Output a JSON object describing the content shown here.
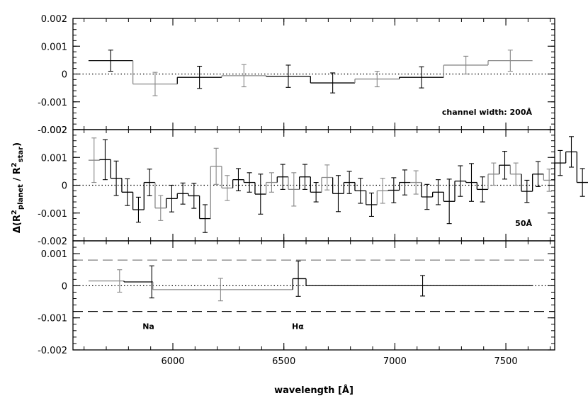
{
  "chart_data": {
    "type": "line",
    "xlabel": "wavelength [Å]",
    "ylabel": "Δ(R²planet / R²star)",
    "ylabel_parts": {
      "prefix": "Δ(R",
      "sup1": "2",
      "sub1": "planet",
      "mid": " / R",
      "sup2": "2",
      "sub2": "star",
      "suffix": ")"
    },
    "xlim": [
      5550,
      7720
    ],
    "xticks": [
      6000,
      6500,
      7000,
      7500
    ],
    "x_tick_labels": [
      "6000",
      "6500",
      "7000",
      "7500"
    ],
    "panels": [
      {
        "annotation": "channel width:  200Å",
        "ylim": [
          -0.002,
          0.002
        ],
        "yticks": [
          -0.002,
          -0.001,
          0,
          0.001,
          0.002
        ],
        "y_tick_labels": [
          "-0.002",
          "-0.001",
          "0",
          "0.001",
          "0.002"
        ],
        "series": [
          {
            "style": "black-step",
            "bins": [
              [
                5620,
                5820,
                0.00048,
                0.00038
              ]
            ]
          },
          {
            "style": "gray-step",
            "bins": [
              [
                5820,
                6020,
                -0.00036,
                0.00042
              ]
            ]
          },
          {
            "style": "black-step",
            "bins": [
              [
                6020,
                6220,
                -0.00012,
                0.0004
              ]
            ]
          },
          {
            "style": "gray-step",
            "bins": [
              [
                6220,
                6420,
                -6e-05,
                0.0004
              ]
            ]
          },
          {
            "style": "black-step",
            "bins": [
              [
                6420,
                6620,
                -8e-05,
                0.0004
              ]
            ]
          },
          {
            "style": "black-step",
            "bins": [
              [
                6620,
                6820,
                -0.00032,
                0.00036
              ]
            ]
          },
          {
            "style": "gray-step",
            "bins": [
              [
                6820,
                7020,
                -0.00018,
                0.00028
              ]
            ]
          },
          {
            "style": "black-step",
            "bins": [
              [
                7020,
                7220,
                -0.00012,
                0.00038
              ]
            ]
          },
          {
            "style": "gray-step",
            "bins": [
              [
                7220,
                7420,
                0.00032,
                0.00032
              ]
            ]
          },
          {
            "style": "gray-step",
            "bins": [
              [
                7420,
                7620,
                0.00048,
                0.00038
              ]
            ]
          }
        ]
      },
      {
        "annotation": "50Å",
        "ylim": [
          -0.002,
          0.002
        ],
        "yticks": [
          -0.002,
          -0.001,
          0,
          0.001,
          0.002
        ],
        "y_tick_labels": [
          "-0.002",
          "-0.001",
          "0",
          "0.001",
          "0.002"
        ],
        "bin_width": 50,
        "x_start": 5620,
        "values": [
          0.0009,
          0.00092,
          0.00025,
          -0.00025,
          -0.00088,
          0.0001,
          -0.00082,
          -0.00048,
          -0.0003,
          -0.00038,
          -0.0012,
          0.00068,
          -0.0001,
          0.0002,
          0.0001,
          -0.00032,
          0.0001,
          0.0003,
          -0.00015,
          0.0003,
          -0.00025,
          0.00028,
          -0.0003,
          0.0001,
          -0.0002,
          -0.0007,
          -0.0002,
          -0.00018,
          0.0001,
          0.0001,
          -0.00042,
          -0.00025,
          -0.00058,
          0.00015,
          0.0001,
          -0.00015,
          0.0004,
          0.00072,
          0.0004,
          -0.00022,
          0.0004,
          0.00018,
          0.0008,
          0.0012,
          0.0001
        ],
        "errors": [
          0.0008,
          0.00072,
          0.00062,
          0.00048,
          0.00045,
          0.00048,
          0.00045,
          0.00048,
          0.00038,
          0.00045,
          0.0005,
          0.00065,
          0.00045,
          0.0004,
          0.00035,
          0.00072,
          0.00035,
          0.00045,
          0.0006,
          0.00045,
          0.00035,
          0.00045,
          0.00065,
          0.0004,
          0.00045,
          0.00042,
          0.00045,
          0.00045,
          0.00045,
          0.00042,
          0.00045,
          0.00045,
          0.0008,
          0.00055,
          0.00068,
          0.00045,
          0.0004,
          0.0005,
          0.0004,
          0.0004,
          0.00045,
          0.0004,
          0.00045,
          0.00055,
          0.0005
        ],
        "colors": [
          "gray",
          "black",
          "black",
          "black",
          "black",
          "black",
          "gray",
          "black",
          "black",
          "black",
          "black",
          "gray",
          "gray",
          "black",
          "black",
          "black",
          "gray",
          "black",
          "gray",
          "black",
          "black",
          "gray",
          "black",
          "black",
          "black",
          "black",
          "gray",
          "black",
          "black",
          "gray",
          "black",
          "black",
          "black",
          "black",
          "black",
          "black",
          "gray",
          "black",
          "gray",
          "black",
          "black",
          "gray",
          "black",
          "black",
          "black"
        ]
      },
      {
        "ylim": [
          -0.002,
          0.0014
        ],
        "yticks": [
          -0.002,
          -0.001,
          0,
          0.001
        ],
        "y_tick_labels": [
          "-0.002",
          "-0.001",
          "0",
          "0.001"
        ],
        "series": [
          {
            "style": "gray-step",
            "bins": [
              [
                5620,
                5780,
                0.00015,
                0.00035
              ]
            ]
          },
          {
            "style": "black-step",
            "bins": [
              [
                5780,
                5910,
                0.00012,
                0.0005
              ]
            ]
          },
          {
            "style": "gray-step",
            "bins": [
              [
                5910,
                6540,
                -0.00012,
                0.00035
              ]
            ]
          },
          {
            "style": "black-step",
            "bins": [
              [
                6540,
                6600,
                0.00022,
                0.00055
              ]
            ]
          },
          {
            "style": "black-step",
            "bins": [
              [
                6600,
                7620,
                0.0,
                0.00032
              ]
            ]
          }
        ],
        "errorbar_positions": [
          5760,
          5905,
          6215,
          6565,
          7125
        ],
        "errorbar_values": [
          0.00015,
          0.00012,
          -0.00012,
          0.00022,
          0.0
        ],
        "errorbar_errors": [
          0.00035,
          0.0005,
          0.00035,
          0.00055,
          0.00032
        ],
        "hlines": [
          {
            "y": 0.0008,
            "style": "gray-dashed"
          },
          {
            "y": -0.0008,
            "style": "black-dashed"
          }
        ],
        "labels": [
          {
            "text": "Na",
            "x": 5890
          },
          {
            "text": "Hα",
            "x": 6563
          }
        ]
      }
    ],
    "zero_line": "dotted",
    "grid": false
  }
}
